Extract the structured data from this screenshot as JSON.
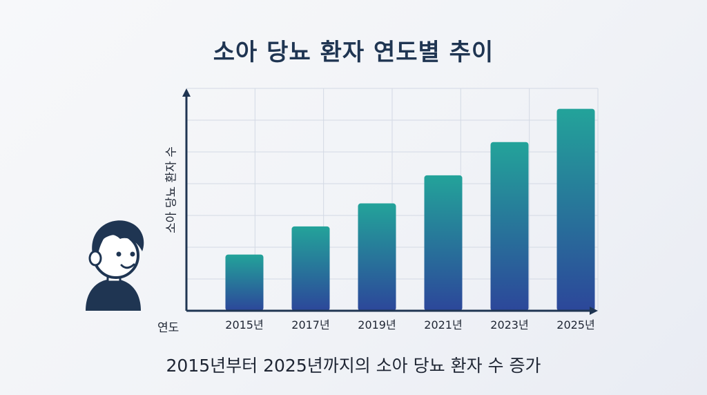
{
  "title": "소아 당뇨 환자 연도별 추이",
  "caption": "2015년부터 2025년까지의 소아 당뇨 환자 수 증가",
  "colors": {
    "bar_top": "#23a39a",
    "bar_bottom": "#2c479a",
    "axis": "#1f3552",
    "grid": "#d3d9e4",
    "title": "#1f3552"
  },
  "chart_data": {
    "type": "bar",
    "title": "소아 당뇨 환자 연도별 추이",
    "xlabel": "연도",
    "ylabel": "소아 당뇨 환자 수",
    "categories": [
      "2015년",
      "2017년",
      "2019년",
      "2021년",
      "2023년",
      "2025년"
    ],
    "values": [
      22,
      33,
      42,
      53,
      66,
      79
    ],
    "ylim": [
      0,
      87
    ],
    "grid": true,
    "y_tick_labels_shown": false
  },
  "illustration": {
    "icon": "child-avatar-icon"
  }
}
